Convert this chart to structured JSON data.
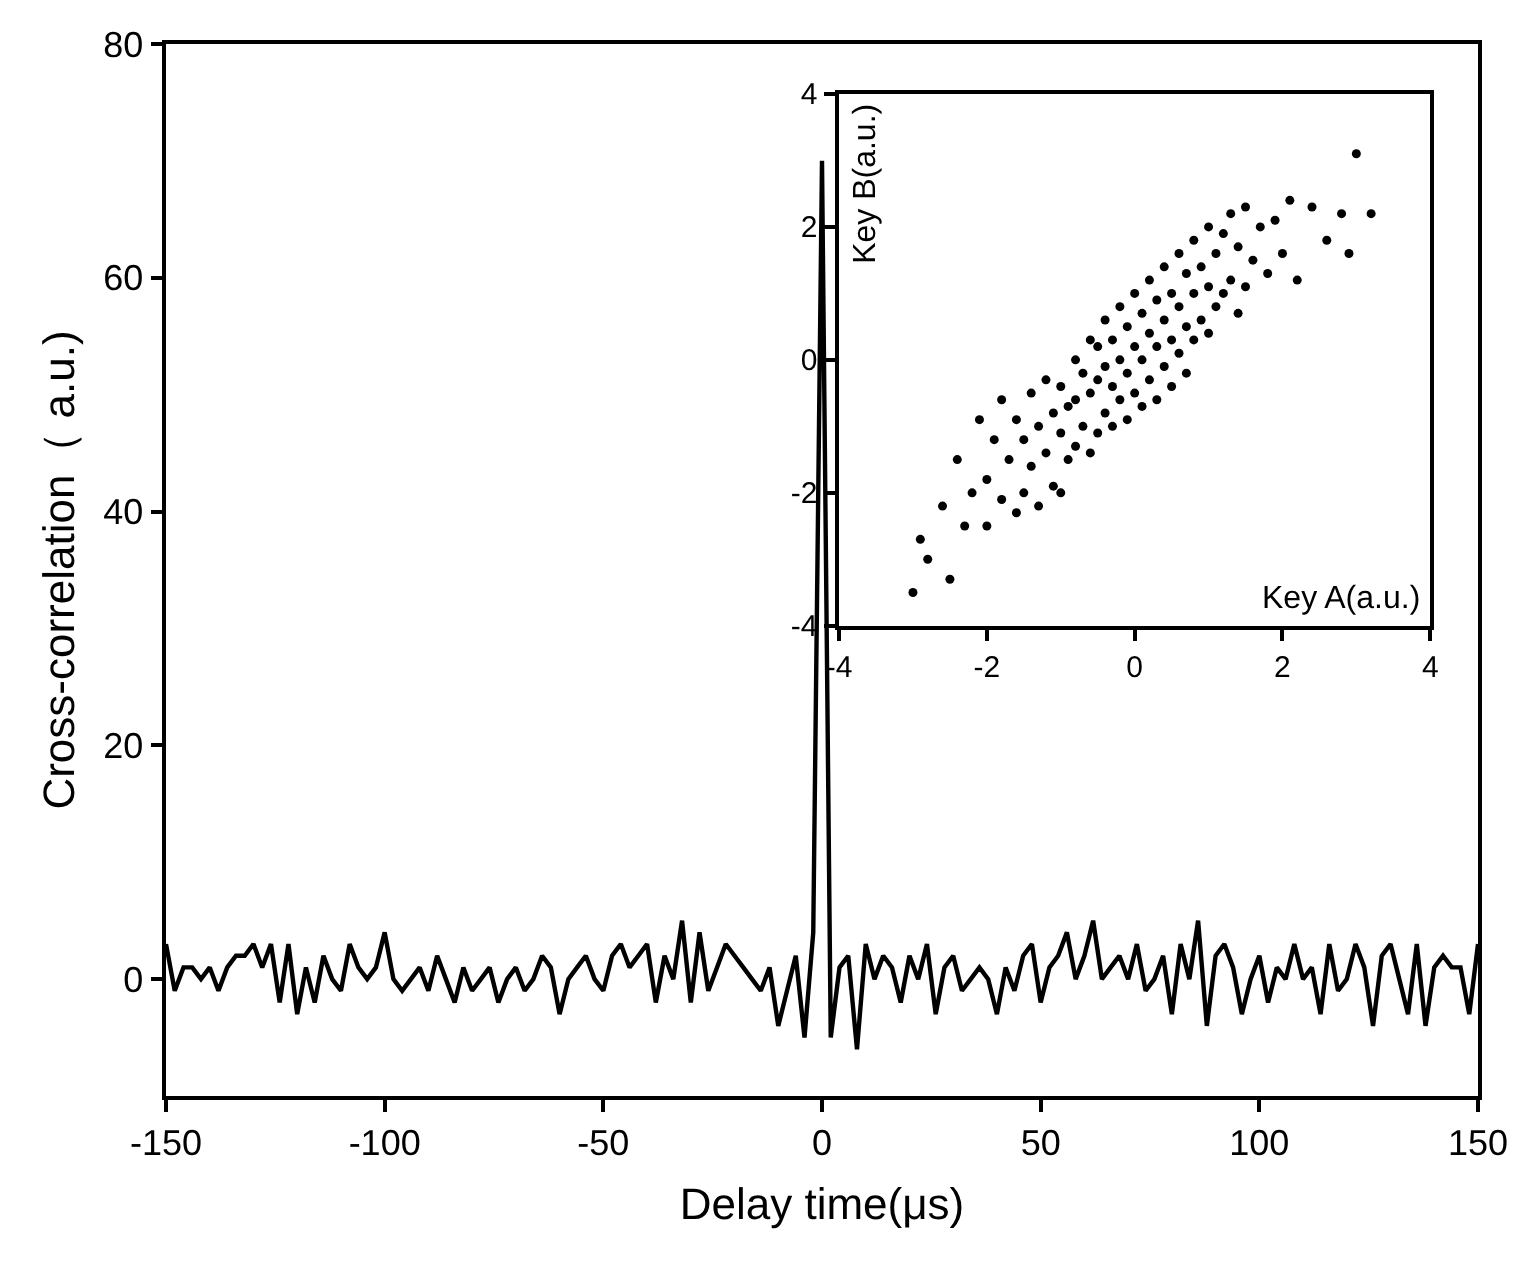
{
  "chart_data": [
    {
      "type": "line",
      "xlabel": "Delay time(μs)",
      "ylabel": "Cross-correlation（ a.u.)",
      "xlim": [
        -150,
        150
      ],
      "xticks": [
        -150,
        -100,
        -50,
        0,
        50,
        100,
        150
      ],
      "ylim": [
        -10,
        80
      ],
      "yticks": [
        0,
        20,
        40,
        60,
        80
      ],
      "marker": "none",
      "line_style": "solid",
      "series": [
        {
          "color": "#000000",
          "x": [
            -150,
            -148,
            -146,
            -144,
            -142,
            -140,
            -138,
            -136,
            -134,
            -132,
            -130,
            -128,
            -126,
            -124,
            -122,
            -120,
            -118,
            -116,
            -114,
            -112,
            -110,
            -108,
            -106,
            -104,
            -102,
            -100,
            -98,
            -96,
            -94,
            -92,
            -90,
            -88,
            -86,
            -84,
            -82,
            -80,
            -78,
            -76,
            -74,
            -72,
            -70,
            -68,
            -66,
            -64,
            -62,
            -60,
            -58,
            -56,
            -54,
            -52,
            -50,
            -48,
            -46,
            -44,
            -42,
            -40,
            -38,
            -36,
            -34,
            -32,
            -30,
            -28,
            -26,
            -24,
            -22,
            -20,
            -18,
            -16,
            -14,
            -12,
            -10,
            -8,
            -6,
            -4,
            -2,
            0,
            2,
            4,
            6,
            8,
            10,
            12,
            14,
            16,
            18,
            20,
            22,
            24,
            26,
            28,
            30,
            32,
            34,
            36,
            38,
            40,
            42,
            44,
            46,
            48,
            50,
            52,
            54,
            56,
            58,
            60,
            62,
            64,
            66,
            68,
            70,
            72,
            74,
            76,
            78,
            80,
            82,
            84,
            86,
            88,
            90,
            92,
            94,
            96,
            98,
            100,
            102,
            104,
            106,
            108,
            110,
            112,
            114,
            116,
            118,
            120,
            122,
            124,
            126,
            128,
            130,
            132,
            134,
            136,
            138,
            140,
            142,
            144,
            146,
            148,
            150
          ],
          "values": [
            3,
            -1,
            1,
            1,
            0,
            1,
            -1,
            1,
            2,
            2,
            3,
            1,
            3,
            -2,
            3,
            -3,
            1,
            -2,
            2,
            0,
            -1,
            3,
            1,
            0,
            1,
            4,
            0,
            -1,
            0,
            1,
            -1,
            2,
            0,
            -2,
            1,
            -1,
            0,
            1,
            -2,
            0,
            1,
            -1,
            0,
            2,
            1,
            -3,
            0,
            1,
            2,
            0,
            -1,
            2,
            3,
            1,
            2,
            3,
            -2,
            2,
            0,
            5,
            -2,
            4,
            -1,
            1,
            3,
            2,
            1,
            0,
            -1,
            1,
            -4,
            -1,
            2,
            -5,
            4,
            70,
            -5,
            1,
            2,
            -6,
            3,
            0,
            2,
            1,
            -2,
            2,
            0,
            3,
            -3,
            1,
            2,
            -1,
            0,
            1,
            0,
            -3,
            1,
            -1,
            2,
            3,
            -2,
            1,
            2,
            4,
            0,
            2,
            5,
            0,
            1,
            2,
            0,
            3,
            -1,
            0,
            2,
            -3,
            3,
            0,
            5,
            -4,
            2,
            3,
            1,
            -3,
            0,
            2,
            -2,
            1,
            0,
            3,
            0,
            1,
            -3,
            3,
            -1,
            0,
            3,
            1,
            -4,
            2,
            3,
            0,
            -3,
            3,
            -4,
            1,
            2,
            1,
            1,
            -3,
            3
          ]
        }
      ]
    },
    {
      "type": "scatter",
      "xlabel": "Key A(a.u.)",
      "ylabel": "Key B(a.u.)",
      "xlim": [
        -4,
        4
      ],
      "xticks": [
        -4,
        -2,
        0,
        2,
        4
      ],
      "ylim": [
        -4,
        4
      ],
      "yticks": [
        -4,
        -2,
        0,
        2,
        4
      ],
      "marker": "circle",
      "series": [
        {
          "color": "#000000",
          "x": [
            -3.0,
            -2.9,
            -2.8,
            -2.6,
            -2.5,
            -2.4,
            -2.3,
            -2.2,
            -2.1,
            -2.0,
            -2.0,
            -1.9,
            -1.8,
            -1.8,
            -1.7,
            -1.6,
            -1.6,
            -1.5,
            -1.5,
            -1.4,
            -1.4,
            -1.3,
            -1.3,
            -1.2,
            -1.2,
            -1.1,
            -1.1,
            -1.0,
            -1.0,
            -1.0,
            -0.9,
            -0.9,
            -0.8,
            -0.8,
            -0.8,
            -0.7,
            -0.7,
            -0.6,
            -0.6,
            -0.6,
            -0.5,
            -0.5,
            -0.5,
            -0.4,
            -0.4,
            -0.4,
            -0.3,
            -0.3,
            -0.3,
            -0.2,
            -0.2,
            -0.2,
            -0.1,
            -0.1,
            -0.1,
            0.0,
            0.0,
            0.0,
            0.1,
            0.1,
            0.1,
            0.2,
            0.2,
            0.2,
            0.3,
            0.3,
            0.3,
            0.4,
            0.4,
            0.4,
            0.5,
            0.5,
            0.5,
            0.6,
            0.6,
            0.6,
            0.7,
            0.7,
            0.7,
            0.8,
            0.8,
            0.8,
            0.9,
            0.9,
            1.0,
            1.0,
            1.0,
            1.1,
            1.1,
            1.2,
            1.2,
            1.3,
            1.3,
            1.4,
            1.4,
            1.5,
            1.5,
            1.6,
            1.7,
            1.8,
            1.9,
            2.0,
            2.1,
            2.2,
            2.4,
            2.6,
            2.8,
            2.9,
            3.0,
            3.2
          ],
          "values": [
            -3.5,
            -2.7,
            -3.0,
            -2.2,
            -3.3,
            -1.5,
            -2.5,
            -2.0,
            -0.9,
            -1.8,
            -2.5,
            -1.2,
            -2.1,
            -0.6,
            -1.5,
            -2.3,
            -0.9,
            -1.2,
            -2.0,
            -0.5,
            -1.6,
            -1.0,
            -2.2,
            -0.3,
            -1.4,
            -0.8,
            -1.9,
            -0.4,
            -1.1,
            -2.0,
            -0.7,
            -1.5,
            0.0,
            -0.6,
            -1.3,
            -0.2,
            -1.0,
            0.3,
            -0.5,
            -1.4,
            0.2,
            -0.3,
            -1.1,
            0.6,
            -0.1,
            -0.8,
            0.3,
            -0.4,
            -1.0,
            0.8,
            0.0,
            -0.6,
            0.5,
            -0.2,
            -0.9,
            1.0,
            0.2,
            -0.5,
            0.7,
            0.0,
            -0.7,
            1.2,
            0.4,
            -0.3,
            0.9,
            0.2,
            -0.6,
            1.4,
            0.6,
            -0.1,
            1.0,
            0.3,
            -0.4,
            1.6,
            0.8,
            0.1,
            1.3,
            0.5,
            -0.2,
            1.8,
            1.0,
            0.3,
            1.4,
            0.6,
            2.0,
            1.1,
            0.4,
            1.6,
            0.8,
            1.9,
            1.0,
            2.2,
            1.2,
            1.7,
            0.7,
            2.3,
            1.1,
            1.5,
            2.0,
            1.3,
            2.1,
            1.6,
            2.4,
            1.2,
            2.3,
            1.8,
            2.2,
            1.6,
            3.1,
            2.2
          ]
        }
      ]
    }
  ]
}
